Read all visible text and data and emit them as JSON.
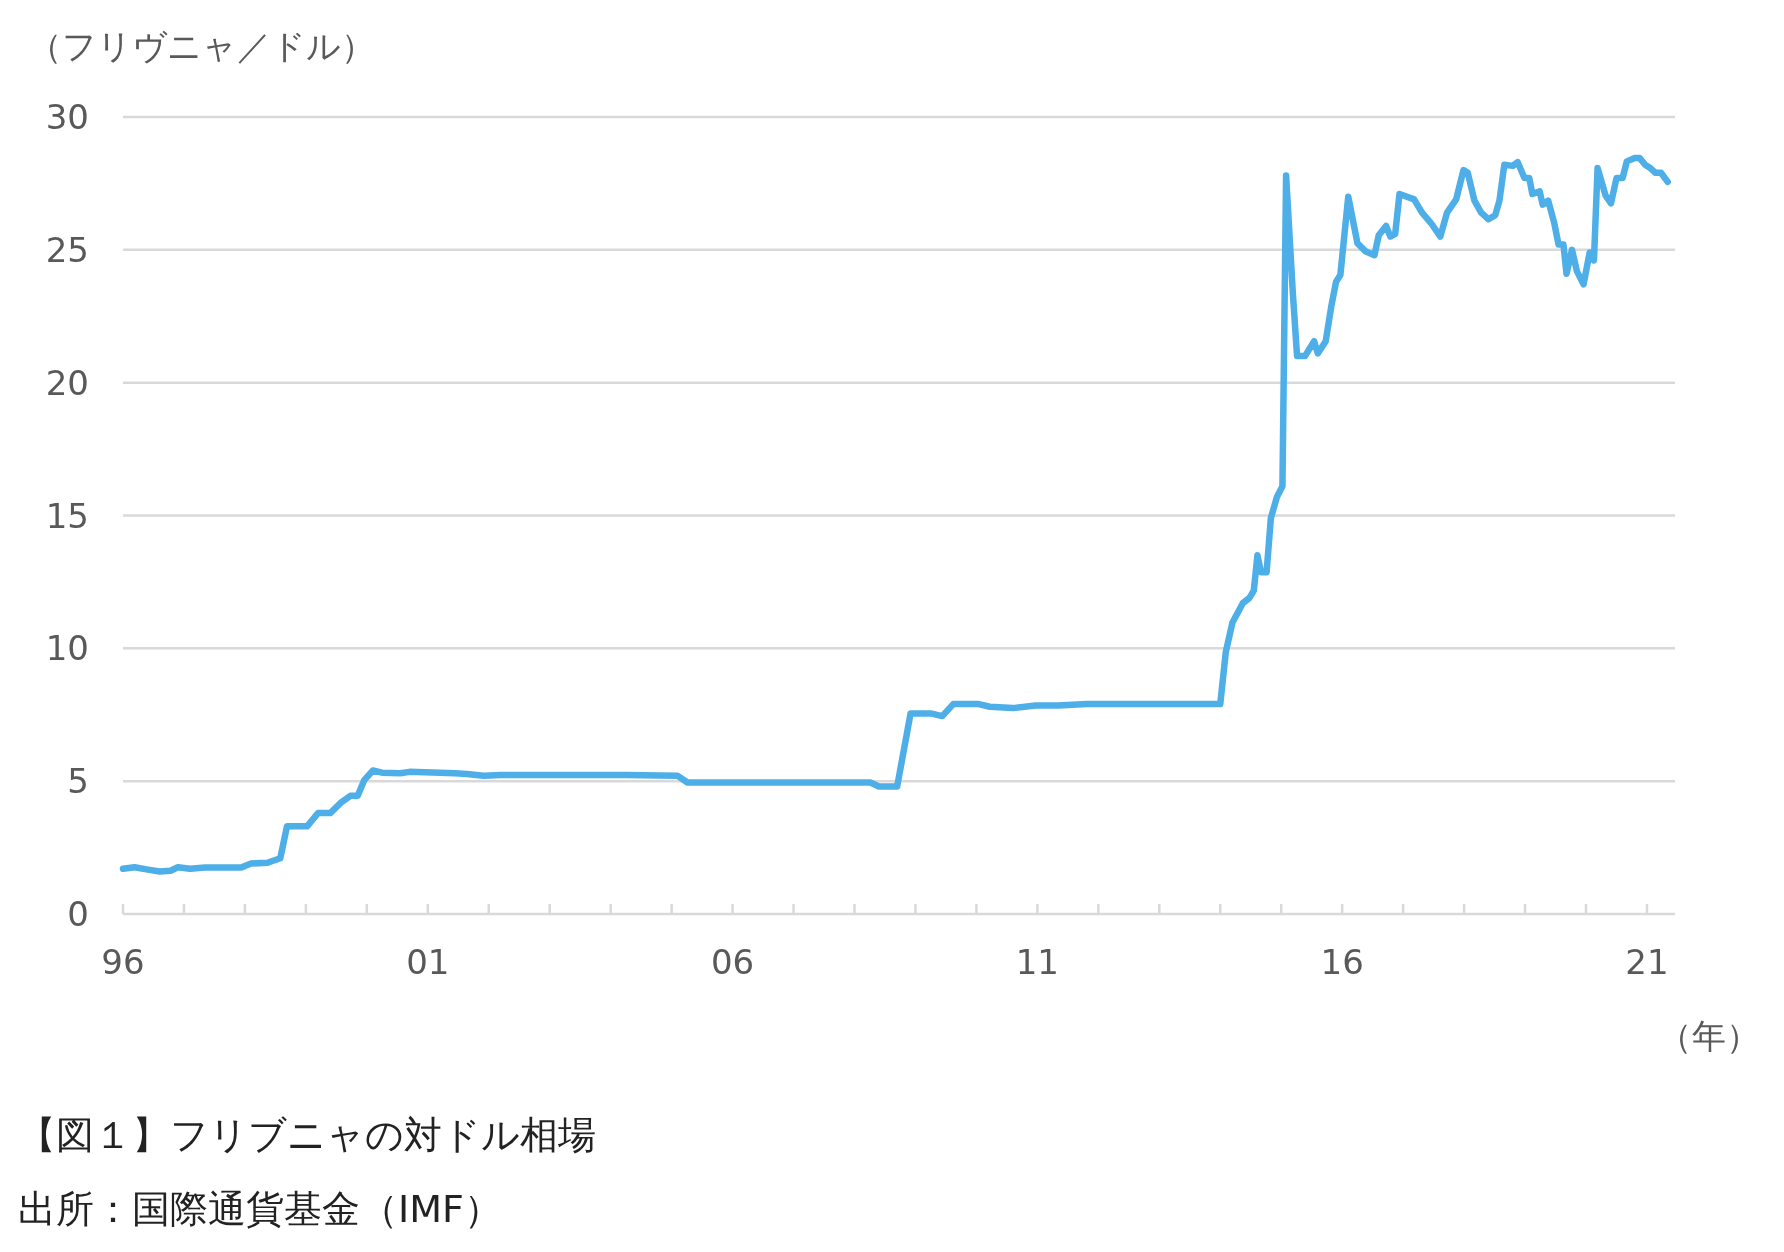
{
  "chart_data": {
    "type": "line",
    "title": "【図１】フリブニャの対ドル相場",
    "ylabel": "（フリヴニャ／ドル）",
    "xlabel": "（年）",
    "annotations": [
      "出所：国際通貨基金（IMF）"
    ],
    "xlim": [
      1996,
      2021.46
    ],
    "ylim": [
      0,
      30
    ],
    "yticks": [
      0,
      5,
      10,
      15,
      20,
      25,
      30
    ],
    "xticks": [
      {
        "value": 1996,
        "label": "96"
      },
      {
        "value": 1997,
        "label": null
      },
      {
        "value": 1998,
        "label": null
      },
      {
        "value": 1999,
        "label": null
      },
      {
        "value": 2000,
        "label": null
      },
      {
        "value": 2001,
        "label": "01"
      },
      {
        "value": 2002,
        "label": null
      },
      {
        "value": 2003,
        "label": null
      },
      {
        "value": 2004,
        "label": null
      },
      {
        "value": 2005,
        "label": null
      },
      {
        "value": 2006,
        "label": "06"
      },
      {
        "value": 2007,
        "label": null
      },
      {
        "value": 2008,
        "label": null
      },
      {
        "value": 2009,
        "label": null
      },
      {
        "value": 2010,
        "label": null
      },
      {
        "value": 2011,
        "label": "11"
      },
      {
        "value": 2012,
        "label": null
      },
      {
        "value": 2013,
        "label": null
      },
      {
        "value": 2014,
        "label": null
      },
      {
        "value": 2015,
        "label": null
      },
      {
        "value": 2016,
        "label": "16"
      },
      {
        "value": 2017,
        "label": null
      },
      {
        "value": 2018,
        "label": null
      },
      {
        "value": 2019,
        "label": null
      },
      {
        "value": 2020,
        "label": null
      },
      {
        "value": 2021,
        "label": "21"
      }
    ],
    "grid": "y",
    "marker": "none",
    "line_style": "solid",
    "series": [
      {
        "color": "#4daee8",
        "x": [
          1996,
          1996.19,
          1996.41,
          1996.6,
          1996.78,
          1996.9,
          1997.1,
          1997.35,
          1997.94,
          1998.1,
          1998.37,
          1998.58,
          1998.69,
          1999.02,
          1999.2,
          1999.4,
          1999.58,
          1999.73,
          1999.85,
          1999.96,
          2000.1,
          2000.25,
          2000.55,
          2000.7,
          2001.45,
          2001.64,
          2001.92,
          2002.2,
          2004.25,
          2005.1,
          2005.26,
          2008.26,
          2008.4,
          2008.7,
          2008.92,
          2009.25,
          2009.44,
          2009.62,
          2010.04,
          2010.22,
          2010.6,
          2010.97,
          2011.34,
          2011.81,
          2014.0,
          2014.09,
          2014.2,
          2014.37,
          2014.48,
          2014.55,
          2014.61,
          2014.67,
          2014.76,
          2014.83,
          2014.93,
          2015.02,
          2015.08,
          2015.19,
          2015.26,
          2015.39,
          2015.54,
          2015.6,
          2015.73,
          2015.82,
          2015.9,
          2015.97,
          2016.1,
          2016.25,
          2016.38,
          2016.53,
          2016.6,
          2016.72,
          2016.79,
          2016.87,
          2016.94,
          2017.18,
          2017.31,
          2017.46,
          2017.61,
          2017.72,
          2017.87,
          2017.99,
          2018.06,
          2018.17,
          2018.28,
          2018.4,
          2018.51,
          2018.58,
          2018.66,
          2018.8,
          2018.88,
          2018.99,
          2019.07,
          2019.12,
          2019.24,
          2019.29,
          2019.38,
          2019.48,
          2019.55,
          2019.63,
          2019.68,
          2019.77,
          2019.85,
          2019.96,
          2020.06,
          2020.13,
          2020.19,
          2020.32,
          2020.41,
          2020.5,
          2020.6,
          2020.67,
          2020.8,
          2020.88,
          2020.97,
          2021.06,
          2021.14,
          2021.23,
          2021.34
        ],
        "values": [
          1.7,
          1.76,
          1.67,
          1.6,
          1.63,
          1.76,
          1.7,
          1.75,
          1.75,
          1.9,
          1.93,
          2.1,
          3.3,
          3.3,
          3.8,
          3.8,
          4.2,
          4.45,
          4.45,
          5.05,
          5.4,
          5.32,
          5.3,
          5.35,
          5.3,
          5.27,
          5.2,
          5.23,
          5.23,
          5.2,
          4.95,
          4.95,
          4.8,
          4.8,
          7.55,
          7.55,
          7.45,
          7.9,
          7.9,
          7.8,
          7.75,
          7.85,
          7.85,
          7.9,
          7.9,
          9.85,
          10.97,
          11.7,
          11.9,
          12.17,
          13.5,
          12.86,
          12.86,
          14.9,
          15.7,
          16.1,
          27.8,
          23.4,
          21.0,
          21.0,
          21.56,
          21.1,
          21.56,
          22.85,
          23.8,
          24.05,
          27.0,
          25.25,
          24.95,
          24.8,
          25.55,
          25.9,
          25.5,
          25.6,
          27.1,
          26.9,
          26.4,
          26.0,
          25.5,
          26.4,
          26.9,
          28.0,
          27.9,
          26.85,
          26.4,
          26.15,
          26.3,
          26.85,
          28.2,
          28.16,
          28.3,
          27.7,
          27.7,
          27.1,
          27.2,
          26.7,
          26.85,
          26.0,
          25.2,
          25.2,
          24.1,
          25.0,
          24.2,
          23.7,
          24.9,
          24.6,
          28.08,
          27.05,
          26.75,
          27.7,
          27.7,
          28.33,
          28.46,
          28.46,
          28.2,
          28.07,
          27.9,
          27.9,
          27.56
        ]
      }
    ]
  }
}
